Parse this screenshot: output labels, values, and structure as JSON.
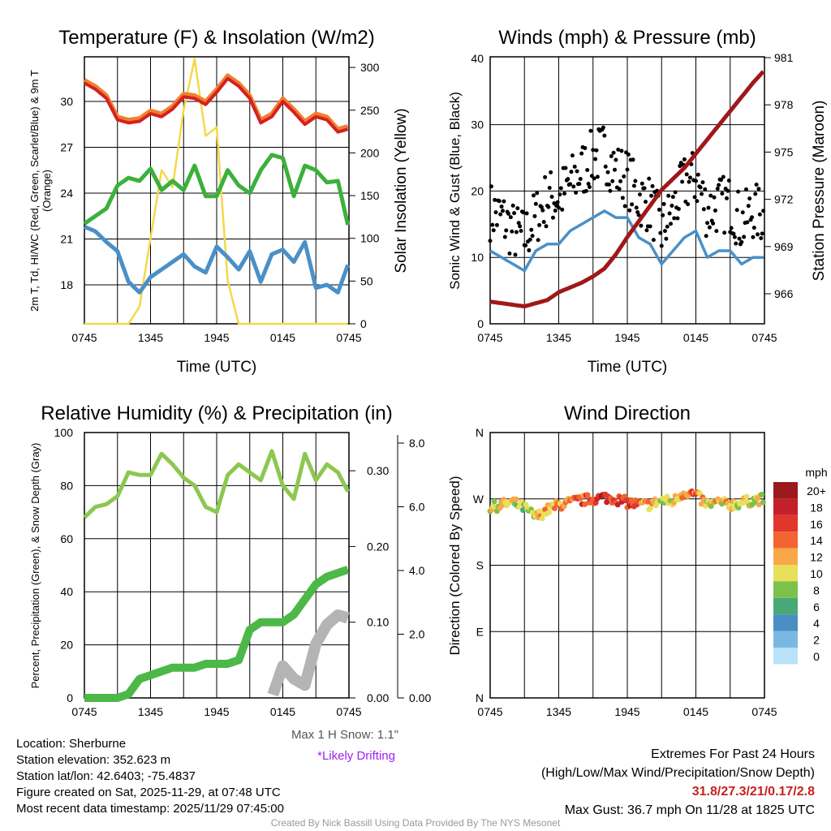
{
  "chart_data": [
    {
      "type": "line",
      "title": "Temperature (F) & Insolation (W/m2)",
      "xlabel": "Time (UTC)",
      "ylabel": "2m T, Td, HI/WC (Red, Green, Scarlet/Blue) & 9m T (Orange)",
      "ylabel2": "Solar Insolation (Yellow)",
      "xticks": [
        "0745",
        "1345",
        "1945",
        "0145",
        "0745"
      ],
      "yticks": [
        "18",
        "21",
        "24",
        "27",
        "30"
      ],
      "yticks2": [
        "0",
        "50",
        "100",
        "150",
        "200",
        "250",
        "300"
      ],
      "ylim": [
        16.3,
        33.8
      ],
      "ylim2": [
        0,
        300
      ],
      "x_hours": "hourly 0-24",
      "series": [
        {
          "name": "2m T",
          "color": "#d62020",
          "values": [
            31.2,
            30.8,
            30.2,
            28.8,
            28.6,
            28.7,
            29.2,
            29.0,
            29.5,
            30.3,
            30.2,
            29.8,
            30.6,
            31.5,
            31.0,
            30.2,
            28.6,
            29.0,
            30.0,
            29.3,
            28.5,
            29.0,
            28.8,
            28.0,
            28.2
          ]
        },
        {
          "name": "Td",
          "color": "#3cb03c",
          "values": [
            22,
            22.5,
            23,
            24.5,
            25,
            24.8,
            25.6,
            24.2,
            24.8,
            24.2,
            25.8,
            23.8,
            23.8,
            25.5,
            24.5,
            24.0,
            25.5,
            26.5,
            26.3,
            23.8,
            25.8,
            25.5,
            24.7,
            24.8,
            21.6
          ]
        },
        {
          "name": "WC",
          "color": "#4a90c8",
          "values": [
            21.8,
            21.5,
            20.8,
            20.2,
            18.2,
            17.5,
            18.5,
            19.0,
            19.5,
            20.0,
            19.2,
            18.8,
            20.5,
            19.8,
            19.0,
            20.2,
            18.2,
            20.0,
            20.3,
            19.5,
            20.8,
            17.8,
            18.0,
            17.5,
            19.5
          ]
        },
        {
          "name": "Solar",
          "color": "#f5d848",
          "axis": "right",
          "values": [
            0,
            0,
            0,
            0,
            0,
            20,
            100,
            180,
            160,
            250,
            310,
            220,
            230,
            50,
            0,
            0,
            0,
            0,
            0,
            0,
            0,
            0,
            0,
            0,
            0
          ]
        }
      ]
    },
    {
      "type": "line",
      "title": "Winds (mph) & Pressure (mb)",
      "xlabel": "Time (UTC)",
      "ylabel": "Sonic Wind & Gust (Blue, Black)",
      "ylabel2": "Station Pressure (Maroon)",
      "xticks": [
        "0745",
        "1345",
        "1945",
        "0145",
        "0745"
      ],
      "yticks": [
        "0",
        "10",
        "20",
        "30",
        "40"
      ],
      "yticks2": [
        "966",
        "969",
        "972",
        "975",
        "978",
        "981"
      ],
      "ylim": [
        0,
        40
      ],
      "ylim2": [
        964.1,
        981
      ],
      "series": [
        {
          "name": "Sonic Wind",
          "color": "#4a90c8",
          "values": [
            11,
            10,
            9,
            8,
            11,
            12,
            12,
            14,
            15,
            16,
            17,
            16,
            16,
            13,
            12,
            9,
            11,
            13,
            14,
            10,
            11,
            11,
            9,
            10,
            10
          ]
        },
        {
          "name": "Gust",
          "color": "#000000",
          "values": [
            17,
            16,
            14,
            13,
            16,
            19,
            19,
            21,
            23,
            25,
            26,
            23,
            22,
            19,
            18,
            14,
            17,
            21,
            22,
            17,
            18,
            18,
            15,
            17,
            16
          ]
        },
        {
          "name": "Pressure",
          "color": "#a01818",
          "axis": "right",
          "values": [
            965.5,
            965.4,
            965.3,
            965.2,
            965.4,
            965.6,
            966.1,
            966.4,
            966.7,
            967.1,
            967.6,
            968.5,
            969.6,
            970.6,
            971.6,
            972.6,
            973.3,
            974.0,
            974.9,
            975.8,
            976.7,
            977.6,
            978.5,
            979.4,
            980.2
          ]
        }
      ]
    },
    {
      "type": "line",
      "title": "Relative Humidity (%) & Precipitation (in)",
      "ylabel": "Percent, Precipitation (Green), & Snow Depth (Gray)",
      "xticks": [
        "0745",
        "1345",
        "1945",
        "0145",
        "0745"
      ],
      "yticks": [
        "0",
        "20",
        "40",
        "60",
        "80",
        "100"
      ],
      "yticks2": [
        "0.00",
        "0.10",
        "0.20",
        "0.30"
      ],
      "yticks3": [
        "0.00",
        "2.0",
        "4.0",
        "6.0",
        "8.0"
      ],
      "ylim": [
        0,
        100
      ],
      "ylim2": [
        0,
        0.35
      ],
      "ylim3": [
        0,
        8.4
      ],
      "series": [
        {
          "name": "RH",
          "color": "#8cc850",
          "values": [
            68,
            72,
            73,
            76,
            85,
            84,
            84,
            92,
            88,
            83,
            80,
            72,
            70,
            84,
            88,
            85,
            82,
            93,
            80,
            75,
            92,
            82,
            88,
            85,
            77
          ]
        },
        {
          "name": "Precipitation",
          "color": "#4cb848",
          "values": [
            0,
            0,
            0,
            0,
            0.005,
            0.025,
            0.03,
            0.035,
            0.04,
            0.04,
            0.04,
            0.045,
            0.045,
            0.045,
            0.05,
            0.09,
            0.1,
            0.1,
            0.1,
            0.11,
            0.13,
            0.15,
            0.16,
            0.165,
            0.17
          ]
        },
        {
          "name": "Snow Depth",
          "color": "#b4b4b4",
          "values": [
            null,
            null,
            null,
            null,
            null,
            null,
            null,
            null,
            null,
            null,
            null,
            null,
            null,
            null,
            null,
            null,
            null,
            0,
            1.0,
            0.6,
            0.4,
            1.7,
            2.3,
            2.6,
            2.5
          ]
        }
      ],
      "notes": [
        "Max 1 H Snow: 1.1\"",
        "*Likely Drifting"
      ]
    },
    {
      "type": "scatter",
      "title": "Wind Direction",
      "ylabel": "Direction (Colored By Speed)",
      "xticks": [
        "0745",
        "1345",
        "1945",
        "0145",
        "0745"
      ],
      "yticks": [
        "N",
        "E",
        "S",
        "W",
        "N"
      ],
      "ylim": [
        0,
        360
      ],
      "direction": [
        258,
        262,
        265,
        258,
        245,
        255,
        262,
        265,
        268,
        270,
        272,
        270,
        265,
        262,
        262,
        268,
        266,
        280,
        275,
        262,
        265,
        262,
        265,
        268,
        270
      ],
      "legend_title": "mph",
      "legend": [
        "20+",
        "18",
        "16",
        "14",
        "12",
        "10",
        "8",
        "6",
        "4",
        "2",
        "0"
      ],
      "legend_colors": [
        "#9b1a1e",
        "#c4202a",
        "#e0362c",
        "#f26430",
        "#f8a848",
        "#e8e05a",
        "#7cc24a",
        "#48a878",
        "#4a8ec4",
        "#7ab8e4",
        "#b8e2f8"
      ]
    }
  ],
  "info": {
    "location": "Location: Sherburne",
    "elevation": "Station elevation: 352.623 m",
    "latlon": "Station lat/lon: 42.6403; -75.4837",
    "created": "Figure created on Sat, 2025-11-29, at 07:48 UTC",
    "recent": "Most recent data timestamp: 2025/11/29 07:45:00"
  },
  "extremes": {
    "title": "Extremes For Past 24 Hours",
    "subtitle": "(High/Low/Max Wind/Precipitation/Snow Depth)",
    "values": "31.8/27.3/21/0.17/2.8",
    "gust": "Max Gust: 36.7 mph On 11/28 at 1825 UTC"
  },
  "credit": "Created By Nick Bassill Using Data Provided By The NYS Mesonet"
}
